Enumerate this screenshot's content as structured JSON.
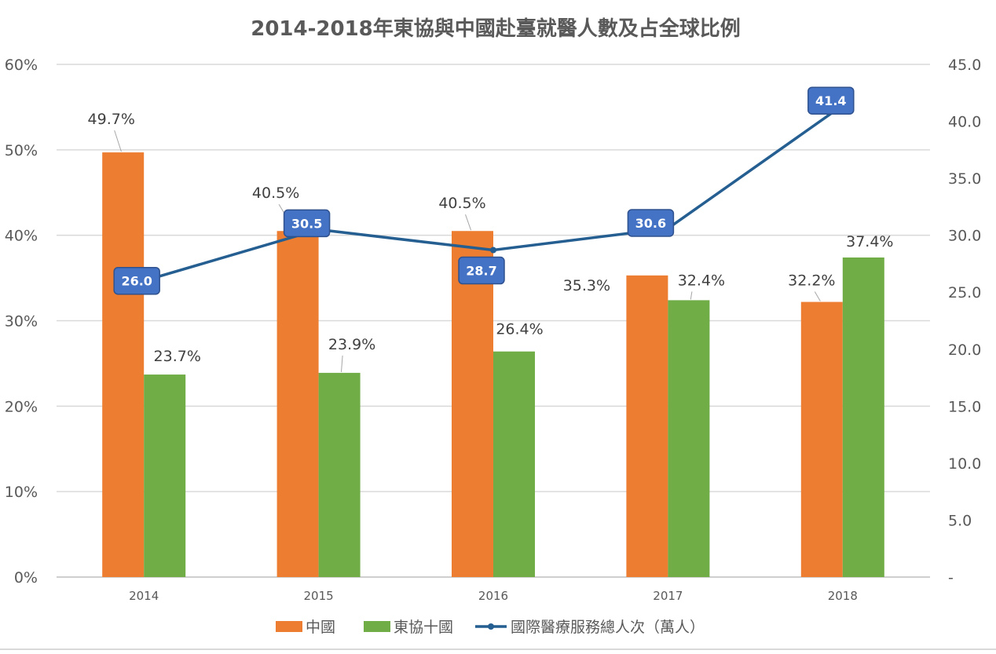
{
  "chart_data": {
    "type": "bar+line",
    "title": "2014-2018年東協與中國赴臺就醫人數及占全球比例",
    "categories": [
      "2014",
      "2015",
      "2016",
      "2017",
      "2018"
    ],
    "series": [
      {
        "name": "中國",
        "type": "bar",
        "axis": "left",
        "color": "#ED7D31",
        "values": [
          49.7,
          40.5,
          40.5,
          35.3,
          32.2
        ],
        "labels": [
          "49.7%",
          "40.5%",
          "40.5%",
          "35.3%",
          "32.2%"
        ]
      },
      {
        "name": "東協十國",
        "type": "bar",
        "axis": "left",
        "color": "#70AD47",
        "values": [
          23.7,
          23.9,
          26.4,
          32.4,
          37.4
        ],
        "labels": [
          "23.7%",
          "23.9%",
          "26.4%",
          "32.4%",
          "37.4%"
        ]
      },
      {
        "name": "國際醫療服務總人次（萬人）",
        "type": "line",
        "axis": "right",
        "color": "#255E91",
        "label_bg": "#4472C4",
        "values": [
          26.0,
          30.5,
          28.7,
          30.6,
          41.4
        ],
        "labels": [
          "26.0",
          "30.5",
          "28.7",
          "30.6",
          "41.4"
        ]
      }
    ],
    "y_left": {
      "min": 0,
      "max": 60,
      "step": 10,
      "tick_labels": [
        "0%",
        "10%",
        "20%",
        "30%",
        "40%",
        "50%",
        "60%"
      ]
    },
    "y_right": {
      "min": 0,
      "max": 45,
      "step": 5,
      "tick_labels": [
        "-",
        "5.0",
        "10.0",
        "15.0",
        "20.0",
        "25.0",
        "30.0",
        "35.0",
        "40.0",
        "45.0"
      ]
    },
    "legend": {
      "position": "bottom",
      "items": [
        "中國",
        "東協十國",
        "國際醫療服務總人次（萬人）"
      ]
    },
    "grid": true
  }
}
